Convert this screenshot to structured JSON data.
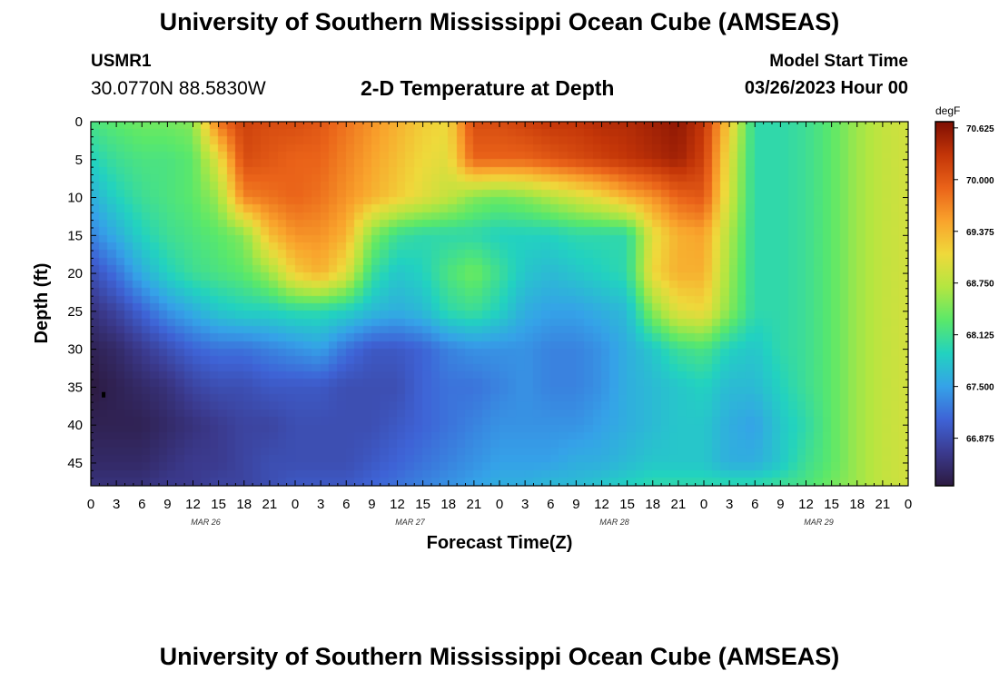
{
  "header": {
    "title": "University of Southern Mississippi Ocean Cube (AMSEAS)",
    "station": "USMR1",
    "coordinates": "30.0770N  88.5830W",
    "subtitle": "2-D Temperature at Depth",
    "model_start_label": "Model Start Time",
    "model_start_value": "03/26/2023 Hour 00"
  },
  "footer": {
    "title": "University of Southern Mississippi Ocean Cube (AMSEAS)"
  },
  "chart_data": {
    "type": "heatmap",
    "title": "2-D Temperature at Depth",
    "xlabel": "Forecast Time(Z)",
    "ylabel": "Depth (ft)",
    "x_ticks": [
      "0",
      "3",
      "6",
      "9",
      "12",
      "15",
      "18",
      "21",
      "0",
      "3",
      "6",
      "9",
      "12",
      "15",
      "18",
      "21",
      "0",
      "3",
      "6",
      "9",
      "12",
      "15",
      "18",
      "21",
      "0",
      "3",
      "6",
      "9",
      "12",
      "15",
      "18",
      "21",
      "0"
    ],
    "x_range_hours": [
      0,
      96
    ],
    "date_labels": [
      {
        "text": "MAR 26",
        "hour": 13.5
      },
      {
        "text": "MAR 27",
        "hour": 37.5
      },
      {
        "text": "MAR 28",
        "hour": 61.5
      },
      {
        "text": "MAR 29",
        "hour": 85.5
      }
    ],
    "y_ticks": [
      "0",
      "5",
      "10",
      "15",
      "20",
      "25",
      "30",
      "35",
      "40",
      "45"
    ],
    "y_range": [
      0,
      48
    ],
    "colorbar": {
      "unit": "degF",
      "labels": [
        "70.625",
        "70.000",
        "69.375",
        "68.750",
        "68.125",
        "67.500",
        "66.875"
      ],
      "min": 66.3,
      "max": 70.7,
      "colors": [
        "#2c1a40",
        "#3b3a8e",
        "#3e63d6",
        "#35a2e8",
        "#22d2c0",
        "#5ae86a",
        "#b3e641",
        "#efd93b",
        "#f9a32c",
        "#ea6319",
        "#c33508",
        "#7e0e03"
      ]
    },
    "marker": {
      "label": "",
      "hour": 1.5,
      "depth": 36
    },
    "temperature_degF": {
      "hours": [
        0,
        3,
        6,
        9,
        12,
        15,
        18,
        21,
        24,
        27,
        30,
        33,
        36,
        39,
        42,
        45,
        48,
        51,
        54,
        57,
        60,
        63,
        66,
        69,
        72,
        75,
        78,
        81,
        84,
        87,
        90,
        93,
        96
      ],
      "depths": [
        0,
        5,
        10,
        15,
        20,
        25,
        30,
        35,
        40,
        45,
        48
      ],
      "values": [
        [
          68.2,
          68.3,
          68.4,
          68.4,
          68.5,
          69.8,
          70.2,
          70.1,
          70.1,
          70.0,
          69.8,
          69.6,
          69.4,
          69.2,
          69.1,
          70.1,
          70.1,
          70.2,
          70.3,
          70.3,
          70.4,
          70.4,
          70.5,
          70.6,
          70.3,
          69.2,
          68.0,
          68.0,
          68.1,
          68.3,
          68.6,
          68.8,
          68.9
        ],
        [
          67.9,
          68.1,
          68.2,
          68.2,
          68.3,
          69.0,
          70.1,
          70.0,
          69.9,
          69.9,
          69.7,
          69.5,
          69.3,
          69.1,
          69.0,
          69.9,
          69.9,
          69.9,
          70.0,
          70.1,
          70.2,
          70.3,
          70.4,
          70.5,
          70.2,
          69.0,
          68.0,
          68.0,
          68.1,
          68.3,
          68.6,
          68.8,
          68.9
        ],
        [
          67.6,
          67.9,
          68.1,
          68.2,
          68.3,
          68.6,
          69.7,
          69.8,
          69.9,
          69.8,
          69.6,
          69.4,
          69.2,
          69.0,
          68.8,
          68.5,
          68.4,
          68.5,
          68.7,
          68.9,
          69.1,
          69.4,
          69.6,
          69.9,
          70.0,
          68.9,
          68.0,
          68.0,
          68.1,
          68.3,
          68.6,
          68.8,
          68.9
        ],
        [
          67.3,
          67.6,
          67.9,
          68.1,
          68.2,
          68.3,
          68.5,
          69.3,
          69.6,
          69.6,
          69.4,
          68.5,
          68.1,
          68.0,
          68.0,
          68.0,
          67.9,
          67.9,
          67.9,
          68.0,
          68.0,
          68.0,
          69.0,
          69.4,
          69.5,
          68.7,
          68.0,
          68.0,
          68.1,
          68.3,
          68.6,
          68.8,
          68.9
        ],
        [
          66.9,
          67.2,
          67.6,
          67.9,
          68.1,
          68.2,
          68.3,
          68.6,
          69.2,
          69.4,
          69.0,
          68.1,
          67.8,
          67.9,
          68.2,
          68.4,
          68.1,
          67.8,
          67.7,
          67.8,
          67.9,
          68.0,
          69.1,
          69.4,
          69.4,
          68.6,
          68.0,
          68.0,
          68.1,
          68.3,
          68.6,
          68.8,
          68.9
        ],
        [
          66.6,
          66.8,
          67.1,
          67.4,
          67.6,
          67.8,
          67.9,
          67.9,
          68.0,
          68.0,
          67.9,
          67.7,
          67.6,
          67.7,
          68.0,
          68.1,
          67.9,
          67.6,
          67.5,
          67.5,
          67.6,
          67.7,
          68.5,
          69.0,
          69.1,
          68.5,
          68.0,
          68.0,
          68.1,
          68.3,
          68.6,
          68.8,
          68.9
        ],
        [
          66.4,
          66.5,
          66.7,
          66.9,
          67.1,
          67.2,
          67.2,
          67.3,
          67.4,
          67.5,
          67.2,
          67.0,
          67.0,
          67.1,
          67.3,
          67.4,
          67.4,
          67.4,
          67.3,
          67.3,
          67.4,
          67.6,
          67.8,
          68.1,
          68.2,
          67.9,
          67.8,
          68.0,
          68.1,
          68.3,
          68.6,
          68.8,
          68.9
        ],
        [
          66.3,
          66.4,
          66.5,
          66.6,
          66.8,
          66.9,
          66.9,
          67.0,
          67.0,
          67.0,
          66.9,
          66.9,
          66.9,
          67.1,
          67.2,
          67.2,
          67.3,
          67.4,
          67.3,
          67.3,
          67.4,
          67.6,
          67.7,
          67.8,
          67.9,
          67.7,
          67.7,
          67.9,
          68.1,
          68.3,
          68.6,
          68.8,
          68.9
        ],
        [
          66.4,
          66.4,
          66.4,
          66.5,
          66.6,
          66.7,
          66.8,
          66.8,
          66.9,
          66.9,
          66.9,
          66.9,
          67.0,
          67.1,
          67.2,
          67.3,
          67.4,
          67.4,
          67.4,
          67.4,
          67.5,
          67.6,
          67.7,
          67.8,
          67.8,
          67.6,
          67.5,
          67.8,
          68.0,
          68.3,
          68.6,
          68.8,
          68.9
        ],
        [
          66.5,
          66.5,
          66.5,
          66.6,
          66.7,
          66.7,
          66.8,
          66.9,
          66.9,
          66.9,
          66.9,
          67.0,
          67.1,
          67.2,
          67.3,
          67.4,
          67.5,
          67.5,
          67.5,
          67.6,
          67.6,
          67.7,
          67.8,
          67.8,
          67.8,
          67.6,
          67.6,
          67.8,
          68.1,
          68.3,
          68.6,
          68.8,
          68.9
        ],
        [
          66.6,
          66.6,
          66.6,
          66.7,
          66.7,
          66.8,
          66.8,
          66.9,
          67.0,
          67.0,
          67.0,
          67.1,
          67.2,
          67.3,
          67.4,
          67.5,
          67.6,
          67.6,
          67.7,
          67.7,
          67.8,
          67.9,
          68.0,
          68.0,
          68.0,
          68.0,
          68.0,
          68.1,
          68.2,
          68.4,
          68.6,
          68.8,
          68.9
        ]
      ]
    }
  }
}
